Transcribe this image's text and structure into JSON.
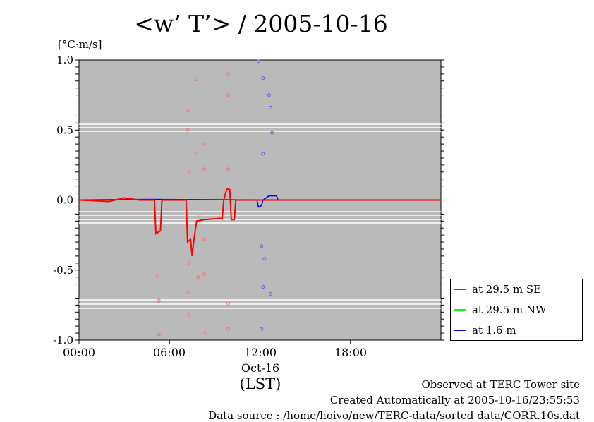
{
  "chart_data": {
    "type": "line",
    "title": "<w’ T’> / 2005-10-16",
    "ylabel": "[°C·m/s]",
    "xlabel": "(LST)",
    "xlim": [
      0,
      24
    ],
    "ylim": [
      -1.0,
      1.0
    ],
    "xticks": [
      {
        "v": 0,
        "label": "00:00"
      },
      {
        "v": 6,
        "label": "06:00"
      },
      {
        "v": 12,
        "label": "12:00"
      },
      {
        "v": 18,
        "label": "18:00"
      }
    ],
    "date_label": "Oct-16",
    "yticks": [
      {
        "v": 1.0,
        "label": "1.0"
      },
      {
        "v": 0.5,
        "label": "0.5"
      },
      {
        "v": 0.0,
        "label": "0.0"
      },
      {
        "v": -0.5,
        "label": "-0.5"
      },
      {
        "v": -1.0,
        "label": "-1.0"
      }
    ],
    "series": [
      {
        "name": "at 29.5 m SE",
        "color": "#ff0000",
        "line": [
          [
            0,
            0
          ],
          [
            1,
            -0.005
          ],
          [
            2,
            -0.01
          ],
          [
            3,
            0.015
          ],
          [
            4,
            0
          ],
          [
            5,
            0
          ],
          [
            5.1,
            -0.24
          ],
          [
            5.4,
            -0.22
          ],
          [
            5.5,
            0
          ],
          [
            7.1,
            0
          ],
          [
            7.2,
            -0.3
          ],
          [
            7.4,
            -0.28
          ],
          [
            7.5,
            -0.4
          ],
          [
            7.6,
            -0.3
          ],
          [
            7.8,
            -0.15
          ],
          [
            8.3,
            -0.14
          ],
          [
            9.5,
            -0.13
          ],
          [
            9.6,
            0
          ],
          [
            9.8,
            0.08
          ],
          [
            10,
            0.075
          ],
          [
            10.1,
            -0.14
          ],
          [
            10.3,
            -0.14
          ],
          [
            10.4,
            0
          ],
          [
            12,
            0
          ],
          [
            24,
            0
          ]
        ],
        "points": [
          [
            5.2,
            -0.54
          ],
          [
            5.3,
            -0.72
          ],
          [
            5.3,
            -0.96
          ],
          [
            7.2,
            0.64
          ],
          [
            7.2,
            0.5
          ],
          [
            7.3,
            0.2
          ],
          [
            7.3,
            -0.45
          ],
          [
            7.2,
            -0.66
          ],
          [
            7.3,
            -0.82
          ],
          [
            7.8,
            0.86
          ],
          [
            7.8,
            0.33
          ],
          [
            7.9,
            -0.55
          ],
          [
            8.3,
            0.4
          ],
          [
            8.3,
            0.22
          ],
          [
            8.3,
            -0.28
          ],
          [
            8.3,
            -0.53
          ],
          [
            8.4,
            -0.95
          ],
          [
            9.9,
            0.9
          ],
          [
            9.9,
            0.75
          ],
          [
            9.9,
            0.22
          ],
          [
            9.9,
            -0.74
          ],
          [
            9.9,
            -0.92
          ]
        ]
      },
      {
        "name": "at 29.5 m NW",
        "color": "#00ff00",
        "line": [
          [
            0,
            0
          ],
          [
            5,
            0.003
          ],
          [
            7.2,
            0.002
          ],
          [
            9.6,
            0.004
          ],
          [
            12,
            0.002
          ],
          [
            24,
            0
          ]
        ],
        "points": []
      },
      {
        "name": "at 1.6 m",
        "color": "#0000ff",
        "line": [
          [
            0,
            0
          ],
          [
            4.7,
            0.005
          ],
          [
            11.8,
            0
          ],
          [
            11.9,
            -0.05
          ],
          [
            12.1,
            -0.04
          ],
          [
            12.2,
            0
          ],
          [
            12.6,
            0.03
          ],
          [
            13.1,
            0.03
          ],
          [
            13.2,
            0
          ],
          [
            24,
            0
          ]
        ],
        "points": [
          [
            11.9,
            0.99
          ],
          [
            12.2,
            0.87
          ],
          [
            12.6,
            0.75
          ],
          [
            12.7,
            0.66
          ],
          [
            12.8,
            0.48
          ],
          [
            12.2,
            0.33
          ],
          [
            12.1,
            -0.33
          ],
          [
            12.3,
            -0.42
          ],
          [
            12.2,
            -0.62
          ],
          [
            12.7,
            -0.67
          ],
          [
            12.1,
            -0.92
          ]
        ]
      }
    ]
  },
  "footer": {
    "line1": "Observed at TERC Tower site",
    "line2": "Created Automatically at 2005-10-16/23:55:53",
    "line3": "Data source : /home/hoivo/new/TERC-data/sorted data/CORR.10s.dat"
  }
}
